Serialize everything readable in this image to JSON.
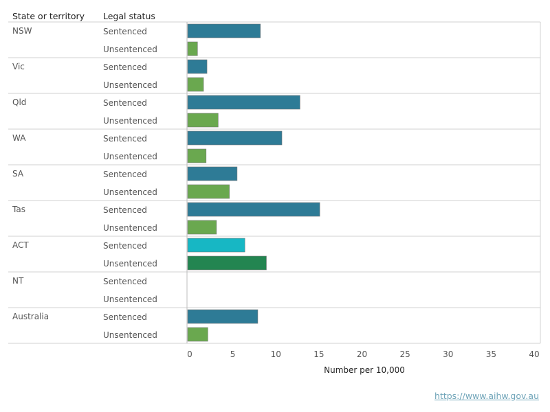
{
  "headers": {
    "state": "State or territory",
    "status": "Legal status"
  },
  "source": {
    "link_text": "https://www.aihw.gov.au"
  },
  "chart_data": {
    "type": "bar",
    "orientation": "horizontal",
    "xlabel": "Number per 10,000",
    "xlim": [
      0,
      40
    ],
    "xticks": [
      0,
      5,
      10,
      15,
      20,
      25,
      30,
      35,
      40
    ],
    "grid": false,
    "groups": [
      {
        "state": "NSW",
        "rows": [
          {
            "status": "Sentenced",
            "value": 8.2,
            "color": "#2e7b96"
          },
          {
            "status": "Unsentenced",
            "value": 0.9,
            "color": "#6aa84f"
          }
        ]
      },
      {
        "state": "Vic",
        "rows": [
          {
            "status": "Sentenced",
            "value": 2.0,
            "color": "#2e7b96"
          },
          {
            "status": "Unsentenced",
            "value": 1.6,
            "color": "#6aa84f"
          }
        ]
      },
      {
        "state": "Qld",
        "rows": [
          {
            "status": "Sentenced",
            "value": 12.8,
            "color": "#2e7b96"
          },
          {
            "status": "Unsentenced",
            "value": 3.3,
            "color": "#6aa84f"
          }
        ]
      },
      {
        "state": "WA",
        "rows": [
          {
            "status": "Sentenced",
            "value": 10.7,
            "color": "#2e7b96"
          },
          {
            "status": "Unsentenced",
            "value": 1.9,
            "color": "#6aa84f"
          }
        ]
      },
      {
        "state": "SA",
        "rows": [
          {
            "status": "Sentenced",
            "value": 5.5,
            "color": "#2e7b96"
          },
          {
            "status": "Unsentenced",
            "value": 4.6,
            "color": "#6aa84f"
          }
        ]
      },
      {
        "state": "Tas",
        "rows": [
          {
            "status": "Sentenced",
            "value": 15.1,
            "color": "#2e7b96"
          },
          {
            "status": "Unsentenced",
            "value": 3.1,
            "color": "#6aa84f"
          }
        ]
      },
      {
        "state": "ACT",
        "rows": [
          {
            "status": "Sentenced",
            "value": 6.4,
            "color": "#17b7c4"
          },
          {
            "status": "Unsentenced",
            "value": 8.9,
            "color": "#238551"
          }
        ]
      },
      {
        "state": "NT",
        "rows": [
          {
            "status": "Sentenced",
            "value": null,
            "color": "#2e7b96"
          },
          {
            "status": "Unsentenced",
            "value": null,
            "color": "#6aa84f"
          }
        ]
      },
      {
        "state": "Australia",
        "rows": [
          {
            "status": "Sentenced",
            "value": 7.9,
            "color": "#2e7b96"
          },
          {
            "status": "Unsentenced",
            "value": 2.1,
            "color": "#6aa84f"
          }
        ]
      }
    ]
  }
}
